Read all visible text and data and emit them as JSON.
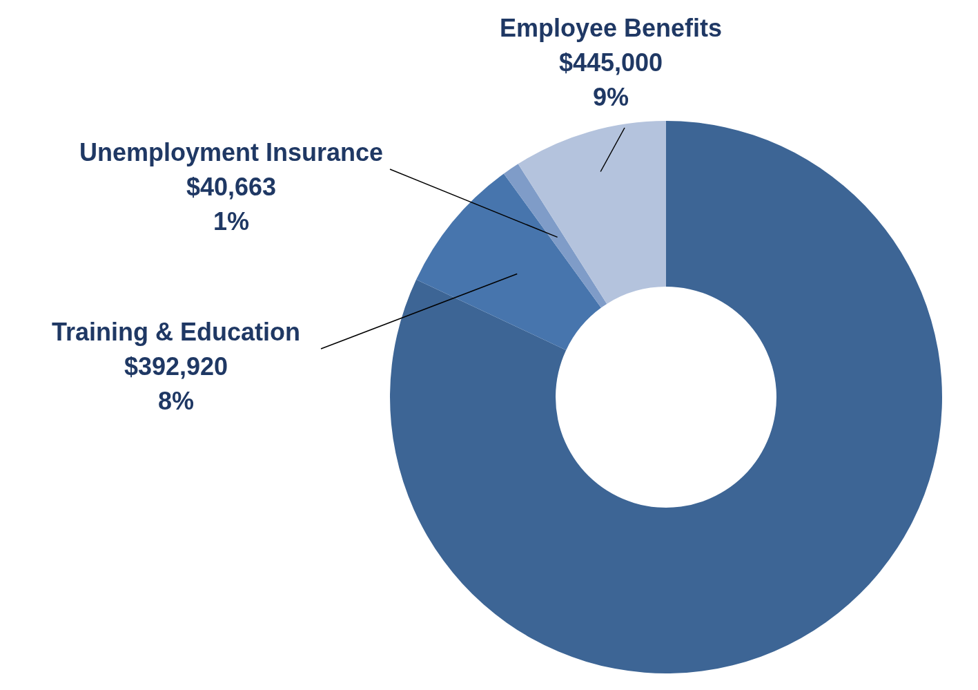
{
  "chart_data": {
    "type": "donut",
    "categories": [
      null,
      "Training & Education",
      "Unemployment Insurance",
      "Employee Benefits"
    ],
    "values": [
      82,
      8,
      1,
      9
    ],
    "value_labels": [
      null,
      "$392,920\n8%",
      "$40,663\n1%",
      "$445,000\n9%"
    ],
    "colors": [
      "#3d6595",
      "#4775ad",
      "#7f9cc8",
      "#b4c3dd"
    ],
    "legend": false
  }
}
